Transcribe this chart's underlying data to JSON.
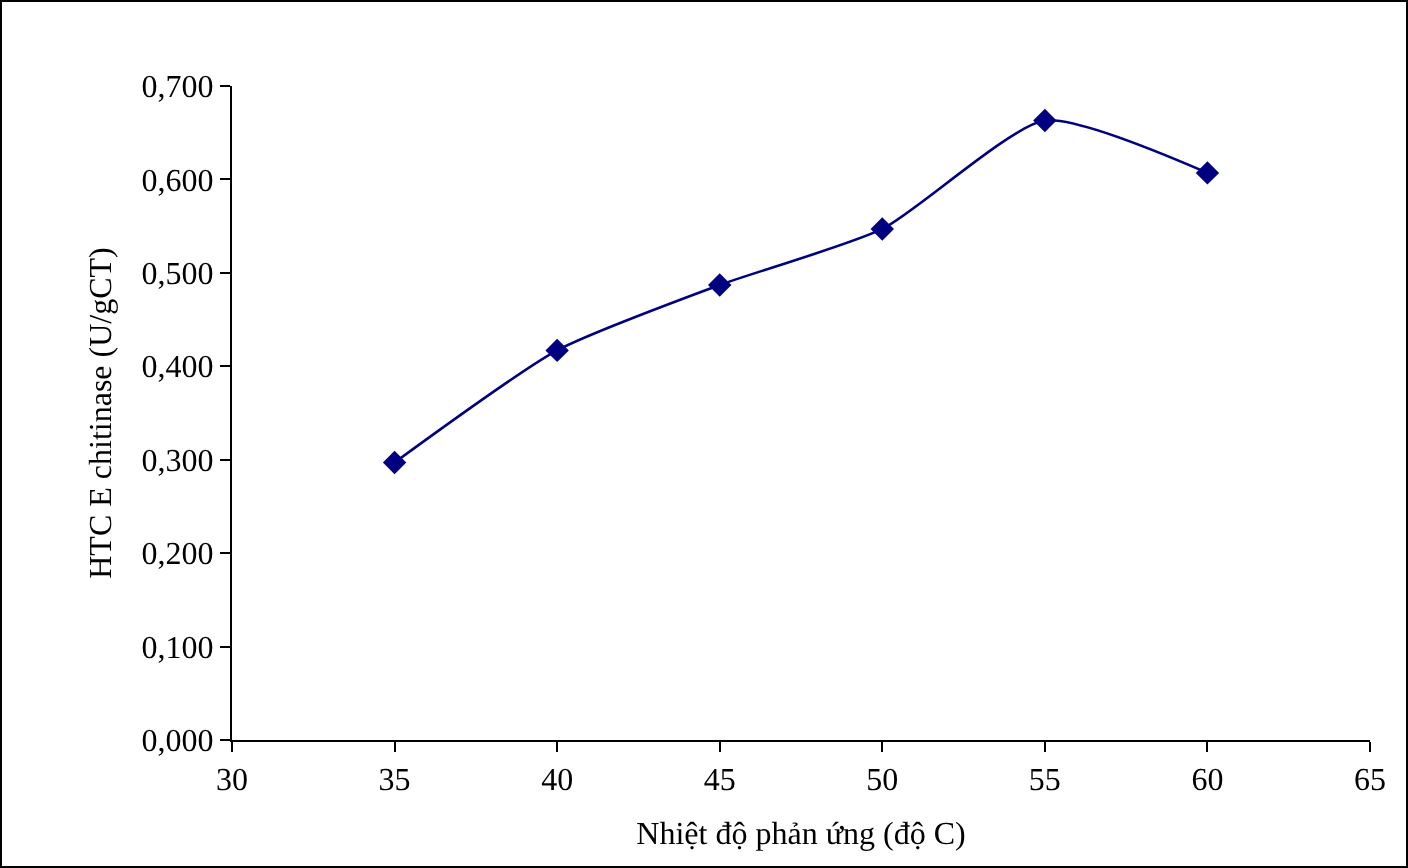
{
  "chart_data": {
    "type": "line",
    "xlabel": "Nhiệt độ phản ứng (độ C)",
    "ylabel": "HTC E chitinase (U/gCT)",
    "x": [
      35,
      40,
      45,
      50,
      55,
      60
    ],
    "series": [
      {
        "color": "#000080",
        "values": [
          0.297,
          0.417,
          0.487,
          0.547,
          0.663,
          0.607
        ]
      }
    ],
    "xlim": [
      30,
      65
    ],
    "xticks": [
      30,
      35,
      40,
      45,
      50,
      55,
      60,
      65
    ],
    "ylim": [
      0,
      0.7
    ],
    "yticks": [
      {
        "value": 0,
        "label": "0,000"
      },
      {
        "value": 0.1,
        "label": "0,100"
      },
      {
        "value": 0.2,
        "label": "0,200"
      },
      {
        "value": 0.3,
        "label": "0,300"
      },
      {
        "value": 0.4,
        "label": "0,400"
      },
      {
        "value": 0.5,
        "label": "0,500"
      },
      {
        "value": 0.6,
        "label": "0,600"
      },
      {
        "value": 0.7,
        "label": "0,700"
      }
    ],
    "grid": false,
    "marker": "diamond",
    "line_style": "solid"
  }
}
